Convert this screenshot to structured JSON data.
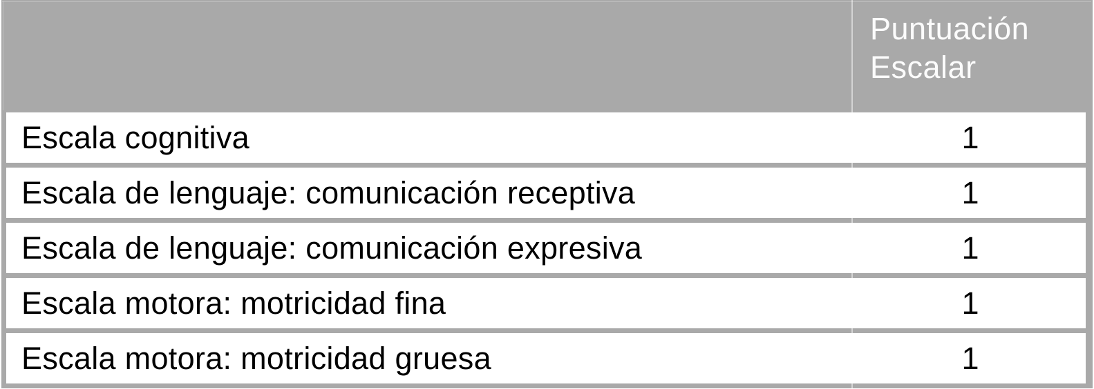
{
  "table": {
    "header": {
      "score_column_label": "Puntuación Escalar"
    },
    "rows": [
      {
        "label": "Escala cognitiva",
        "value": "1"
      },
      {
        "label": "Escala de lenguaje: comunicación receptiva",
        "value": "1"
      },
      {
        "label": "Escala de lenguaje: comunicación expresiva",
        "value": "1"
      },
      {
        "label": "Escala motora: motricidad fina",
        "value": "1"
      },
      {
        "label": "Escala motora: motricidad gruesa",
        "value": "1"
      }
    ],
    "colors": {
      "grid": "#a9a9a9",
      "header_bg": "#a9a9a9",
      "header_text": "#fcfcfc",
      "row_bg": "#ffffff",
      "row_text": "#000000"
    }
  }
}
